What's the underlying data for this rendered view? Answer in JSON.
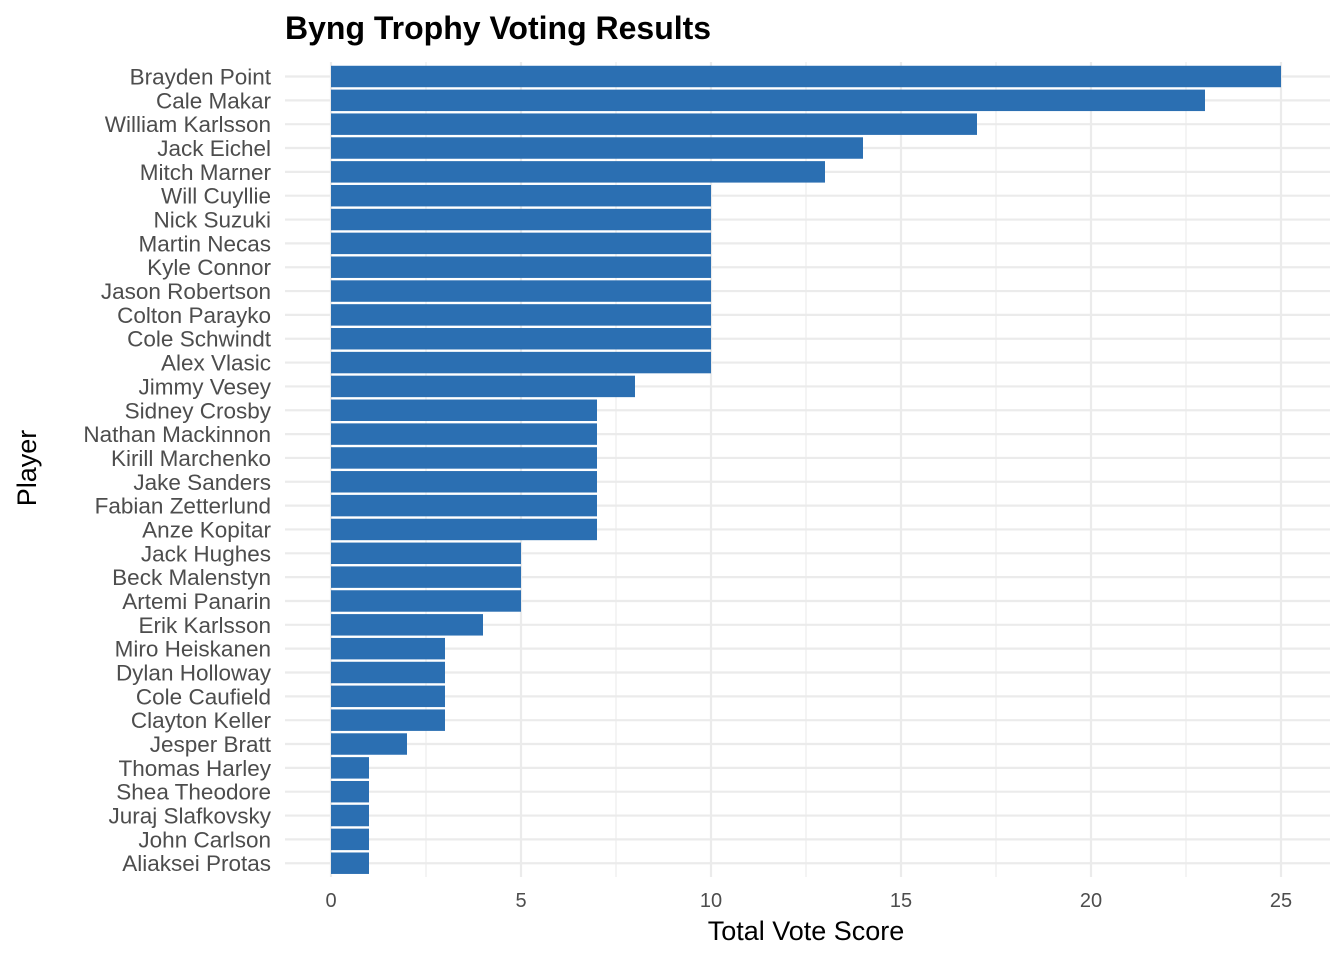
{
  "chart_data": {
    "type": "bar",
    "orientation": "horizontal",
    "title": "Byng Trophy Voting Results",
    "xlabel": "Total Vote Score",
    "ylabel": "Player",
    "xlim": [
      0,
      25
    ],
    "xticks": [
      "0",
      "5",
      "10",
      "15",
      "20",
      "25"
    ],
    "bar_color": "#2b6fb2",
    "grid": true,
    "categories": [
      "Brayden Point",
      "Cale Makar",
      "William Karlsson",
      "Jack Eichel",
      "Mitch Marner",
      "Will Cuyllie",
      "Nick Suzuki",
      "Martin Necas",
      "Kyle Connor",
      "Jason Robertson",
      "Colton Parayko",
      "Cole Schwindt",
      "Alex Vlasic",
      "Jimmy Vesey",
      "Sidney Crosby",
      "Nathan Mackinnon",
      "Kirill Marchenko",
      "Jake Sanders",
      "Fabian Zetterlund",
      "Anze Kopitar",
      "Jack Hughes",
      "Beck Malenstyn",
      "Artemi Panarin",
      "Erik Karlsson",
      "Miro Heiskanen",
      "Dylan Holloway",
      "Cole Caufield",
      "Clayton Keller",
      "Jesper Bratt",
      "Thomas Harley",
      "Shea Theodore",
      "Juraj Slafkovsky",
      "John Carlson",
      "Aliaksei Protas"
    ],
    "values": [
      25,
      23,
      17,
      14,
      13,
      10,
      10,
      10,
      10,
      10,
      10,
      10,
      10,
      8,
      7,
      7,
      7,
      7,
      7,
      7,
      5,
      5,
      5,
      4,
      3,
      3,
      3,
      3,
      2,
      1,
      1,
      1,
      1,
      1
    ]
  }
}
